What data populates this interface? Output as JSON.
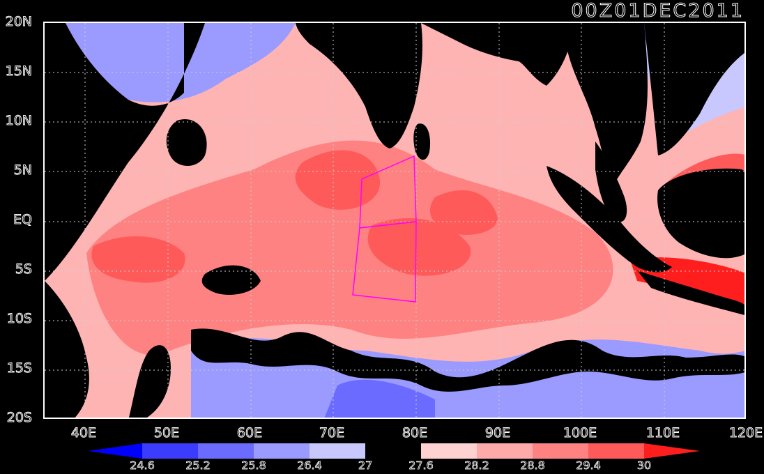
{
  "map": {
    "title": "00Z01DEC2011",
    "lat_labels": [
      "20N",
      "15N",
      "10N",
      "5N",
      "EQ",
      "5S",
      "10S",
      "15S",
      "20S"
    ],
    "lon_labels": [
      "40E",
      "50E",
      "60E",
      "70E",
      "80E",
      "90E",
      "100E",
      "110E",
      "120E"
    ],
    "colorbar": {
      "labels": [
        "24.6",
        "25.2",
        "25.8",
        "26.4",
        "27",
        "27.6",
        "28.2",
        "28.8",
        "29.4",
        "30"
      ],
      "colors": [
        "#0000ff",
        "#3c3cff",
        "#6b6bff",
        "#9a9aff",
        "#c8c8ff",
        "#000000",
        "#ffd2d2",
        "#ffaaaa",
        "#ff8282",
        "#ff5a5a",
        "#ff1e1e"
      ]
    },
    "palette": {
      "land": "#000000",
      "cool_sst": "#8c8cff",
      "warm_sst": "#ff7070",
      "box_outline": "#ff00ff"
    }
  }
}
